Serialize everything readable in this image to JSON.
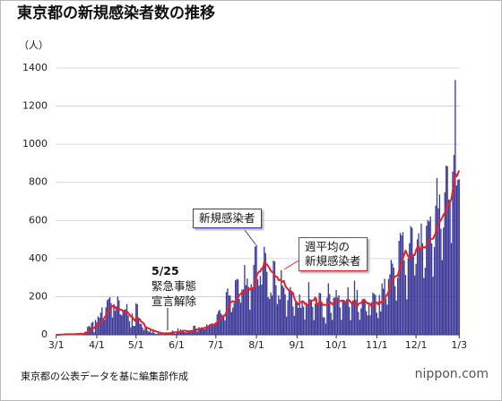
{
  "chart_data": {
    "type": "bar",
    "title": "東京都の新規感染者数の推移",
    "y_unit": "（人）",
    "source": "東京都の公表データを基に編集部作成",
    "logo": "nippon.com",
    "annotation": "5/25\n緊急事態\n宣言解除",
    "ylim": [
      0,
      1400
    ],
    "yticks": [
      0,
      200,
      400,
      600,
      800,
      1000,
      1200,
      1400
    ],
    "grid": true,
    "categories": [
      "3/1",
      null,
      null,
      null,
      null,
      null,
      null,
      null,
      null,
      null,
      null,
      null,
      null,
      null,
      null,
      null,
      null,
      null,
      null,
      null,
      null,
      null,
      null,
      null,
      null,
      null,
      null,
      null,
      null,
      null,
      null,
      "4/1",
      null,
      null,
      null,
      null,
      null,
      null,
      null,
      null,
      null,
      null,
      null,
      null,
      null,
      null,
      null,
      null,
      null,
      null,
      null,
      null,
      null,
      null,
      null,
      null,
      null,
      null,
      null,
      null,
      null,
      "5/1",
      null,
      null,
      null,
      null,
      null,
      null,
      null,
      null,
      null,
      null,
      null,
      null,
      null,
      null,
      null,
      null,
      null,
      null,
      null,
      null,
      null,
      null,
      null,
      null,
      null,
      null,
      null,
      null,
      null,
      null,
      "6/1",
      null,
      null,
      null,
      null,
      null,
      null,
      null,
      null,
      null,
      null,
      null,
      null,
      null,
      null,
      null,
      null,
      null,
      null,
      null,
      null,
      null,
      null,
      null,
      null,
      null,
      null,
      null,
      null,
      null,
      "7/1",
      null,
      null,
      null,
      null,
      null,
      null,
      null,
      null,
      null,
      null,
      null,
      null,
      null,
      null,
      null,
      null,
      null,
      null,
      null,
      null,
      null,
      null,
      null,
      null,
      null,
      null,
      null,
      null,
      null,
      null,
      "8/1",
      null,
      null,
      null,
      null,
      null,
      null,
      null,
      null,
      null,
      null,
      null,
      null,
      null,
      null,
      null,
      null,
      null,
      null,
      null,
      null,
      null,
      null,
      null,
      null,
      null,
      null,
      null,
      null,
      null,
      null,
      "9/1",
      null,
      null,
      null,
      null,
      null,
      null,
      null,
      null,
      null,
      null,
      null,
      null,
      null,
      null,
      null,
      null,
      null,
      null,
      null,
      null,
      null,
      null,
      null,
      null,
      null,
      null,
      null,
      null,
      null,
      "10/1",
      null,
      null,
      null,
      null,
      null,
      null,
      null,
      null,
      null,
      null,
      null,
      null,
      null,
      null,
      null,
      null,
      null,
      null,
      null,
      null,
      null,
      null,
      null,
      null,
      null,
      null,
      null,
      null,
      null,
      null,
      "11/1",
      null,
      null,
      null,
      null,
      null,
      null,
      null,
      null,
      null,
      null,
      null,
      null,
      null,
      null,
      null,
      null,
      null,
      null,
      null,
      null,
      null,
      null,
      null,
      null,
      null,
      null,
      null,
      null,
      null,
      "12/1",
      null,
      null,
      null,
      null,
      null,
      null,
      null,
      null,
      null,
      null,
      null,
      null,
      null,
      null,
      null,
      null,
      null,
      null,
      null,
      null,
      null,
      null,
      null,
      null,
      null,
      null,
      null,
      null,
      null,
      null,
      null,
      null,
      "1/3"
    ],
    "series": [
      {
        "name": "新規感染者",
        "type": "bar",
        "color": "#3b3897",
        "values": [
          0,
          0,
          0,
          3,
          1,
          0,
          3,
          8,
          1,
          2,
          7,
          0,
          2,
          0,
          5,
          6,
          3,
          7,
          2,
          11,
          4,
          7,
          16,
          17,
          41,
          47,
          40,
          63,
          68,
          13,
          78,
          66,
          97,
          89,
          116,
          143,
          83,
          79,
          144,
          181,
          189,
          197,
          166,
          91,
          161,
          126,
          149,
          201,
          181,
          107,
          102,
          123,
          132,
          134,
          161,
          103,
          72,
          39,
          112,
          47,
          46,
          165,
          160,
          91,
          58,
          57,
          38,
          23,
          39,
          36,
          22,
          15,
          28,
          10,
          30,
          9,
          5,
          5,
          10,
          5,
          5,
          3,
          11,
          2,
          14,
          8,
          10,
          11,
          15,
          22,
          14,
          5,
          13,
          34,
          12,
          28,
          20,
          26,
          14,
          13,
          12,
          18,
          22,
          25,
          24,
          47,
          48,
          27,
          16,
          41,
          35,
          39,
          35,
          29,
          31,
          55,
          48,
          54,
          57,
          60,
          58,
          54,
          67,
          107,
          124,
          131,
          111,
          102,
          106,
          75,
          224,
          243,
          206,
          206,
          119,
          143,
          165,
          286,
          293,
          290,
          188,
          168,
          237,
          238,
          366,
          260,
          295,
          239,
          131,
          266,
          250,
          367,
          463,
          472,
          292,
          258,
          309,
          263,
          360,
          462,
          429,
          331,
          197,
          188,
          222,
          206,
          389,
          385,
          260,
          161,
          207,
          186,
          339,
          258,
          247,
          212,
          95,
          182,
          236,
          250,
          226,
          148,
          100,
          170,
          170,
          141,
          211,
          141,
          181,
          148,
          80,
          170,
          149,
          276,
          187,
          181,
          146,
          77,
          163,
          191,
          167,
          220,
          218,
          162,
          93,
          91,
          59,
          195,
          270,
          214,
          115,
          78,
          194,
          196,
          235,
          196,
          207,
          143,
          78,
          180,
          176,
          172,
          187,
          249,
          146,
          77,
          166,
          177,
          284,
          184,
          235,
          120,
          78,
          139,
          186,
          185,
          186,
          124,
          102,
          158,
          102,
          171,
          221,
          215,
          209,
          116,
          87,
          209,
          122,
          269,
          242,
          294,
          189,
          158,
          293,
          317,
          393,
          374,
          352,
          255,
          180,
          298,
          493,
          534,
          522,
          539,
          391,
          314,
          186,
          401,
          481,
          570,
          561,
          418,
          311,
          372,
          500,
          533,
          449,
          584,
          480,
          299,
          352,
          572,
          602,
          595,
          621,
          480,
          305,
          460,
          678,
          822,
          664,
          736,
          556,
          392,
          563,
          748,
          888,
          884,
          710,
          708,
          481,
          856,
          944,
          1337,
          783,
          814,
          816
        ]
      },
      {
        "name": "週平均の\n新規感染者",
        "type": "line",
        "color": "#e8202a",
        "values": [
          0,
          0,
          0,
          1,
          1,
          1,
          2,
          2,
          3,
          3,
          3,
          3,
          3,
          3,
          3,
          4,
          4,
          4,
          4,
          5,
          5,
          5,
          7,
          9,
          14,
          20,
          23,
          30,
          36,
          36,
          43,
          48,
          55,
          59,
          62,
          72,
          82,
          91,
          102,
          115,
          120,
          136,
          143,
          150,
          154,
          143,
          135,
          141,
          136,
          132,
          131,
          124,
          121,
          120,
          121,
          115,
          106,
          95,
          95,
          84,
          74,
          84,
          84,
          86,
          80,
          68,
          65,
          58,
          43,
          38,
          35,
          33,
          29,
          25,
          24,
          20,
          18,
          16,
          15,
          11,
          10,
          8,
          8,
          6,
          7,
          7,
          8,
          9,
          11,
          12,
          13,
          13,
          13,
          15,
          15,
          17,
          18,
          21,
          21,
          21,
          18,
          19,
          18,
          19,
          20,
          23,
          27,
          28,
          27,
          29,
          31,
          33,
          34,
          35,
          37,
          38,
          40,
          41,
          44,
          49,
          53,
          55,
          58,
          65,
          72,
          79,
          86,
          93,
          99,
          101,
          118,
          135,
          154,
          167,
          173,
          177,
          171,
          177,
          187,
          194,
          209,
          213,
          223,
          216,
          222,
          232,
          232,
          247,
          238,
          242,
          239,
          246,
          276,
          306,
          322,
          332,
          332,
          349,
          349,
          382,
          376,
          369,
          360,
          349,
          336,
          329,
          325,
          309,
          305,
          302,
          286,
          289,
          283,
          278,
          283,
          258,
          247,
          241,
          231,
          229,
          225,
          218,
          191,
          176,
          168,
          160,
          170,
          171,
          175,
          174,
          162,
          160,
          154,
          163,
          168,
          179,
          180,
          181,
          196,
          166,
          159,
          170,
          176,
          166,
          156,
          157,
          158,
          154,
          170,
          170,
          169,
          160,
          166,
          167,
          180,
          180,
          178,
          178,
          178,
          180,
          178,
          170,
          168,
          177,
          182,
          172,
          163,
          177,
          162,
          166,
          150,
          162,
          165,
          167,
          176,
          185,
          176,
          172,
          164,
          166,
          159,
          149,
          151,
          160,
          166,
          170,
          160,
          175,
          168,
          175,
          179,
          191,
          202,
          212,
          224,
          252,
          269,
          288,
          297,
          306,
          309,
          310,
          335,
          355,
          376,
          403,
          422,
          442,
          426,
          412,
          405,
          412,
          415,
          419,
          418,
          445,
          459,
          466,
          449,
          452,
          461,
          460,
          457,
          467,
          477,
          498,
          503,
          503,
          504,
          519,
          534,
          566,
          576,
          592,
          603,
          615,
          630,
          640,
          650,
          681,
          677,
          699,
          712,
          754,
          782,
          846,
          831,
          846,
          862
        ]
      }
    ]
  }
}
